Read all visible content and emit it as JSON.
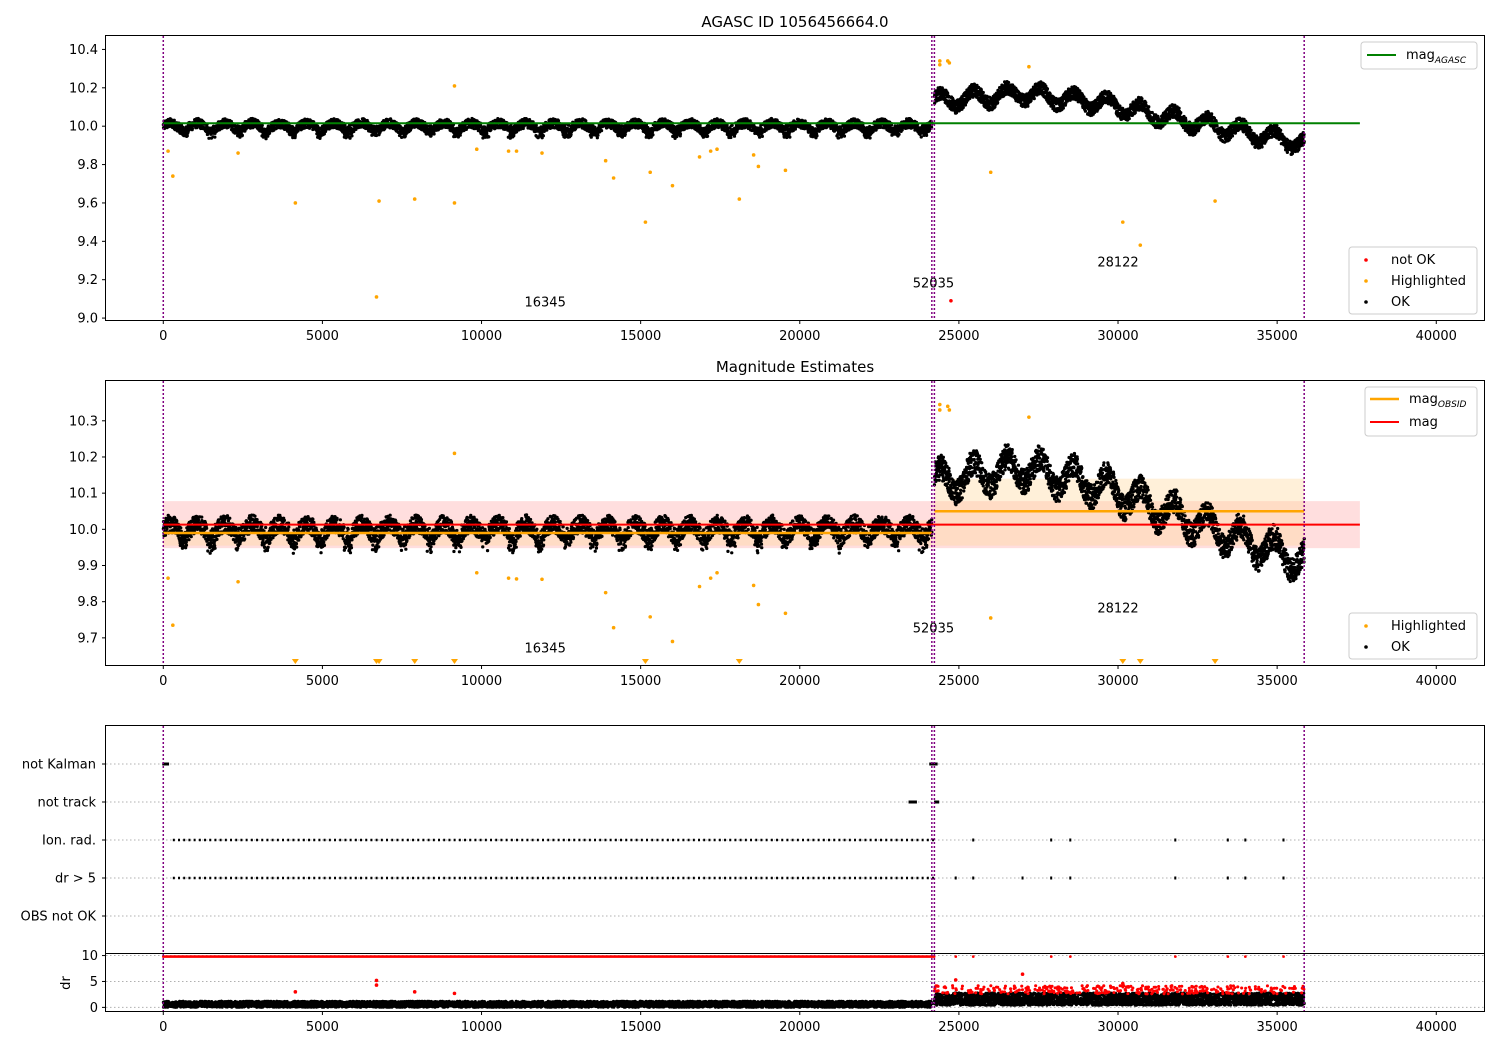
{
  "colors": {
    "ok": "#000000",
    "highlighted": "#FFA500",
    "not_ok": "#FF0000",
    "mag_agasc": "#008000",
    "mag_obsid": "#FFA500",
    "mag": "#FF0000",
    "obs_boundary": "#800080",
    "band_mag": "#FFB6B6",
    "band_obsid": "#FFD9A0"
  },
  "chart_data": [
    {
      "type": "scatter",
      "title": "AGASC ID 1056456664.0",
      "xlim": [
        -1800,
        41500
      ],
      "ylim": [
        8.99,
        10.47
      ],
      "xticks": [
        0,
        5000,
        10000,
        15000,
        20000,
        25000,
        30000,
        35000,
        40000
      ],
      "yticks": [
        9.0,
        9.2,
        9.4,
        9.6,
        9.8,
        10.0,
        10.2,
        10.4
      ],
      "ytick_labels": [
        "9.0",
        "9.2",
        "9.4",
        "9.6",
        "9.8",
        "10.0",
        "10.2",
        "10.4"
      ],
      "mag_agasc": {
        "value": 10.015,
        "x_range": [
          0,
          37600
        ],
        "legend_label": "mag",
        "legend_subscript": "AGASC"
      },
      "obs_boundaries": [
        0,
        24150,
        24230,
        35850
      ],
      "obsids": [
        {
          "label": "16345",
          "x": 12000,
          "y": 9.06
        },
        {
          "label": "52035",
          "x": 24200,
          "y": 9.16
        },
        {
          "label": "28122",
          "x": 30000,
          "y": 9.27
        }
      ],
      "ok_segments": [
        {
          "x_range": [
            0,
            24150
          ],
          "center": 10.0,
          "amplitude": 0.045,
          "period": 860
        },
        {
          "x_range": [
            24230,
            35850
          ],
          "trend": [
            [
              24230,
              10.13
            ],
            [
              27000,
              10.17
            ],
            [
              29500,
              10.12
            ],
            [
              31500,
              10.05
            ],
            [
              33000,
              10.0
            ],
            [
              35850,
              9.91
            ]
          ],
          "amplitude": 0.07,
          "period": 1050
        }
      ],
      "highlighted": [
        [
          150,
          9.87
        ],
        [
          300,
          9.74
        ],
        [
          2350,
          9.86
        ],
        [
          4150,
          9.6
        ],
        [
          6700,
          9.11
        ],
        [
          6780,
          9.61
        ],
        [
          7900,
          9.62
        ],
        [
          9150,
          10.21
        ],
        [
          9150,
          9.6
        ],
        [
          9850,
          9.88
        ],
        [
          10850,
          9.87
        ],
        [
          11100,
          9.87
        ],
        [
          11900,
          9.86
        ],
        [
          13900,
          9.82
        ],
        [
          14150,
          9.73
        ],
        [
          15150,
          9.5
        ],
        [
          15300,
          9.76
        ],
        [
          16000,
          9.69
        ],
        [
          16850,
          9.84
        ],
        [
          17200,
          9.87
        ],
        [
          17400,
          9.88
        ],
        [
          18100,
          9.62
        ],
        [
          18550,
          9.85
        ],
        [
          18700,
          9.79
        ],
        [
          19550,
          9.77
        ],
        [
          24400,
          10.32
        ],
        [
          24400,
          10.34
        ],
        [
          24650,
          10.34
        ],
        [
          24700,
          10.33
        ],
        [
          26000,
          9.76
        ],
        [
          27200,
          10.31
        ],
        [
          30150,
          9.5
        ],
        [
          30700,
          9.38
        ],
        [
          33050,
          9.61
        ]
      ],
      "not_ok": [
        [
          24750,
          9.09
        ]
      ],
      "legend_upper": [
        "mag_AGASC"
      ],
      "legend_lower": [
        "not OK",
        "Highlighted",
        "OK"
      ]
    },
    {
      "type": "scatter",
      "title": "Magnitude Estimates",
      "xlim": [
        -1800,
        41500
      ],
      "ylim": [
        9.625,
        10.41
      ],
      "xticks": [
        0,
        5000,
        10000,
        15000,
        20000,
        25000,
        30000,
        35000,
        40000
      ],
      "yticks": [
        9.7,
        9.8,
        9.9,
        10.0,
        10.1,
        10.2,
        10.3
      ],
      "ytick_labels": [
        "9.7",
        "9.8",
        "9.9",
        "10.0",
        "10.1",
        "10.2",
        "10.3"
      ],
      "mag": {
        "value": 10.013,
        "x_range": [
          0,
          37600
        ],
        "band": [
          9.948,
          10.078
        ],
        "legend_label": "mag"
      },
      "mag_obsid": [
        {
          "x_range": [
            0,
            24150
          ],
          "value": 9.99,
          "band": [
            9.955,
            10.025
          ]
        },
        {
          "x_range": [
            24230,
            35850
          ],
          "value": 10.05,
          "band": [
            9.955,
            10.14
          ]
        }
      ],
      "mag_obsid_legend": {
        "legend_label": "mag",
        "legend_subscript": "OBSID"
      },
      "obs_boundaries": [
        0,
        24150,
        24230,
        35850
      ],
      "obsids": [
        {
          "label": "16345",
          "x": 12000,
          "y": 9.66
        },
        {
          "label": "52035",
          "x": 24200,
          "y": 9.715
        },
        {
          "label": "28122",
          "x": 30000,
          "y": 9.77
        }
      ],
      "ok_segments": [
        {
          "x_range": [
            0,
            24150
          ],
          "center": 10.0,
          "amplitude": 0.045,
          "period": 860
        },
        {
          "x_range": [
            24230,
            35850
          ],
          "trend": [
            [
              24230,
              10.13
            ],
            [
              27000,
              10.17
            ],
            [
              29500,
              10.12
            ],
            [
              31500,
              10.05
            ],
            [
              33000,
              10.0
            ],
            [
              35850,
              9.91
            ]
          ],
          "amplitude": 0.07,
          "period": 1050
        }
      ],
      "highlighted": [
        [
          150,
          9.865
        ],
        [
          300,
          9.735
        ],
        [
          2350,
          9.855
        ],
        [
          9150,
          10.21
        ],
        [
          9850,
          9.88
        ],
        [
          10850,
          9.865
        ],
        [
          11100,
          9.863
        ],
        [
          11900,
          9.862
        ],
        [
          13900,
          9.825
        ],
        [
          14150,
          9.728
        ],
        [
          15300,
          9.758
        ],
        [
          16000,
          9.69
        ],
        [
          16850,
          9.842
        ],
        [
          17200,
          9.865
        ],
        [
          17400,
          9.88
        ],
        [
          18550,
          9.845
        ],
        [
          18700,
          9.792
        ],
        [
          19550,
          9.768
        ],
        [
          24400,
          10.33
        ],
        [
          24400,
          10.345
        ],
        [
          24650,
          10.34
        ],
        [
          24700,
          10.33
        ],
        [
          26000,
          9.755
        ],
        [
          27200,
          10.31
        ]
      ],
      "below_axis_markers": [
        4150,
        6700,
        6780,
        7900,
        9150,
        15150,
        18100,
        30150,
        30700,
        33050
      ],
      "legend_upper": [
        "mag_OBSID",
        "mag"
      ],
      "legend_lower": [
        "Highlighted",
        "OK"
      ]
    },
    {
      "type": "scatter",
      "title": "",
      "xlim": [
        -1800,
        41500
      ],
      "categories": [
        "not Kalman",
        "not track",
        "Ion. rad.",
        "dr > 5",
        "OBS not OK"
      ],
      "flag_points": {
        "not Kalman": [
          [
            0,
            150
          ],
          [
            24100,
            24300
          ]
        ],
        "not track": [
          [
            23450,
            23650
          ],
          [
            24250,
            24350
          ]
        ],
        "Ion. rad.": [
          [
            300,
            24230
          ],
          [
            25450,
            25450
          ],
          [
            27900,
            27900
          ],
          [
            28500,
            28500
          ],
          [
            31800,
            31800
          ],
          [
            33450,
            33450
          ],
          [
            34000,
            34000
          ],
          [
            35200,
            35200
          ]
        ],
        "dr > 5": [
          [
            300,
            24230
          ],
          [
            24900,
            24900
          ],
          [
            25450,
            25450
          ],
          [
            27000,
            27000
          ],
          [
            27900,
            27900
          ],
          [
            28500,
            28500
          ],
          [
            31800,
            31800
          ],
          [
            33450,
            33450
          ],
          [
            34000,
            34000
          ],
          [
            35200,
            35200
          ]
        ],
        "OBS not OK": []
      }
    },
    {
      "type": "scatter",
      "title": "",
      "ylabel": "dr",
      "xlim": [
        -1800,
        41500
      ],
      "ylim": [
        -0.7,
        10.3
      ],
      "xticks": [
        0,
        5000,
        10000,
        15000,
        20000,
        25000,
        30000,
        35000,
        40000
      ],
      "yticks": [
        0,
        5,
        10
      ],
      "ytick_labels": [
        "0",
        "5",
        "10"
      ],
      "ok_segments": [
        {
          "x_range": [
            0,
            24150
          ],
          "center": 0.6,
          "spread": 0.6
        },
        {
          "x_range": [
            24230,
            35850
          ],
          "center": 1.6,
          "spread": 1.2
        }
      ],
      "red_cap": {
        "value": 9.8,
        "x_range": [
          0,
          35850
        ]
      },
      "red_points": [
        [
          4150,
          3.0
        ],
        [
          6700,
          5.2
        ],
        [
          6700,
          4.3
        ],
        [
          7900,
          3.0
        ],
        [
          9150,
          2.7
        ],
        [
          24900,
          5.3
        ],
        [
          27000,
          6.4
        ],
        [
          30150,
          4.6
        ]
      ]
    }
  ]
}
